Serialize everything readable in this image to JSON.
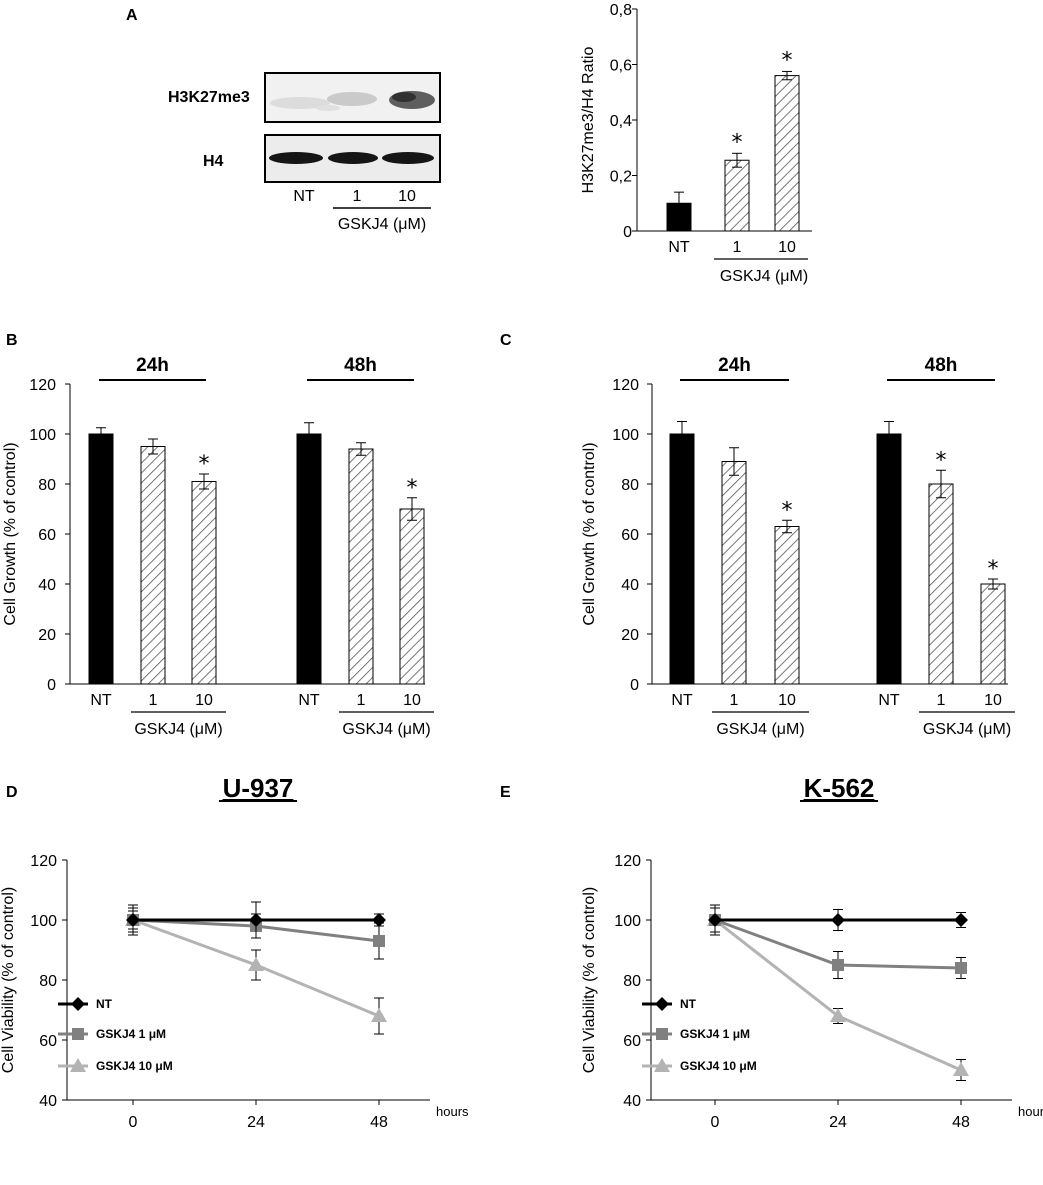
{
  "colors": {
    "nt_bar": "#000000",
    "hatch": "#555555",
    "nt_line": "#000000",
    "gskj4_1_line": "#808080",
    "gskj4_10_line": "#b3b3b3"
  },
  "panels": {
    "A": "A",
    "B": "B",
    "C": "C",
    "D": "D",
    "E": "E"
  },
  "blot": {
    "rows": [
      "H3K27me3",
      "H4"
    ],
    "lanes": [
      "NT",
      "1",
      "10"
    ],
    "treatment": "GSKJ4 (μM)"
  },
  "chart_data": [
    {
      "id": "A",
      "type": "bar",
      "categories": [
        "NT",
        "1",
        "10"
      ],
      "values": [
        0.1,
        0.255,
        0.56
      ],
      "errors": [
        0.04,
        0.025,
        0.015
      ],
      "significant": [
        false,
        true,
        true
      ],
      "star": "*",
      "fill": [
        "solid",
        "hatched",
        "hatched"
      ],
      "ylabel": "H3K27me3/H4 Ratio",
      "xlabel": "GSKJ4 (μM)",
      "ylim": [
        0,
        0.8
      ],
      "yticks": [
        0,
        0.2,
        0.4,
        0.6,
        0.8
      ],
      "ytick_labels": [
        "0",
        "0,2",
        "0,4",
        "0,6",
        "0,8"
      ]
    },
    {
      "id": "B",
      "type": "bar",
      "groups": [
        "24h",
        "48h"
      ],
      "categories": [
        "NT",
        "1",
        "10"
      ],
      "series": [
        {
          "name": "24h",
          "values": [
            100,
            95,
            81
          ],
          "errors": [
            2.5,
            3,
            3
          ],
          "significant": [
            false,
            false,
            true
          ]
        },
        {
          "name": "48h",
          "values": [
            100,
            94,
            70
          ],
          "errors": [
            4.5,
            2.5,
            4.5
          ],
          "significant": [
            false,
            false,
            true
          ]
        }
      ],
      "star": "*",
      "ylabel": "Cell Growth (% of control)",
      "xlabel": "GSKJ4 (μM)",
      "ylim": [
        0,
        120
      ],
      "yticks": [
        0,
        20,
        40,
        60,
        80,
        100,
        120
      ],
      "ytick_labels": [
        "0",
        "20",
        "40",
        "60",
        "80",
        "100",
        "120"
      ]
    },
    {
      "id": "C",
      "type": "bar",
      "groups": [
        "24h",
        "48h"
      ],
      "categories": [
        "NT",
        "1",
        "10"
      ],
      "series": [
        {
          "name": "24h",
          "values": [
            100,
            89,
            63
          ],
          "errors": [
            5,
            5.5,
            2.5
          ],
          "significant": [
            false,
            false,
            true
          ]
        },
        {
          "name": "48h",
          "values": [
            100,
            80,
            40
          ],
          "errors": [
            5,
            5.5,
            2
          ],
          "significant": [
            false,
            true,
            true
          ]
        }
      ],
      "star": "*",
      "ylabel": "Cell Growth (% of control)",
      "xlabel": "GSKJ4 (μM)",
      "ylim": [
        0,
        120
      ],
      "yticks": [
        0,
        20,
        40,
        60,
        80,
        100,
        120
      ],
      "ytick_labels": [
        "0",
        "20",
        "40",
        "60",
        "80",
        "100",
        "120"
      ]
    },
    {
      "id": "D",
      "type": "line",
      "title": "U-937",
      "x": [
        0,
        24,
        48
      ],
      "xtick_labels": [
        "0",
        "24",
        "48"
      ],
      "xunit": "hours",
      "series": [
        {
          "name": "NT",
          "marker": "diamond",
          "values": [
            100,
            100,
            100
          ],
          "errors": [
            3,
            6,
            2
          ]
        },
        {
          "name": "GSKJ4 1 μM",
          "marker": "square",
          "values": [
            100,
            98,
            93
          ],
          "errors": [
            5,
            4,
            6
          ]
        },
        {
          "name": "GSKJ4 10 μM",
          "marker": "triangle",
          "values": [
            100,
            85,
            68
          ],
          "errors": [
            4,
            5,
            6
          ]
        }
      ],
      "ylabel": "Cell Viability (% of control)",
      "ylim": [
        40,
        120
      ],
      "yticks": [
        40,
        60,
        80,
        100,
        120
      ],
      "ytick_labels": [
        "40",
        "60",
        "80",
        "100",
        "120"
      ]
    },
    {
      "id": "E",
      "type": "line",
      "title": "K-562",
      "x": [
        0,
        24,
        48
      ],
      "xtick_labels": [
        "0",
        "24",
        "48"
      ],
      "xunit": "hours",
      "series": [
        {
          "name": "NT",
          "marker": "diamond",
          "values": [
            100,
            100,
            100
          ],
          "errors": [
            4,
            3.5,
            2.5
          ]
        },
        {
          "name": "GSKJ4 1 μM",
          "marker": "square",
          "values": [
            100,
            85,
            84
          ],
          "errors": [
            5,
            4.5,
            3.5
          ]
        },
        {
          "name": "GSKJ4 10 μM",
          "marker": "triangle",
          "values": [
            100,
            68,
            50
          ],
          "errors": [
            4,
            2.5,
            3.5
          ]
        }
      ],
      "ylabel": "Cell Viability (% of control)",
      "ylim": [
        40,
        120
      ],
      "yticks": [
        40,
        60,
        80,
        100,
        120
      ],
      "ytick_labels": [
        "40",
        "60",
        "80",
        "100",
        "120"
      ]
    }
  ]
}
